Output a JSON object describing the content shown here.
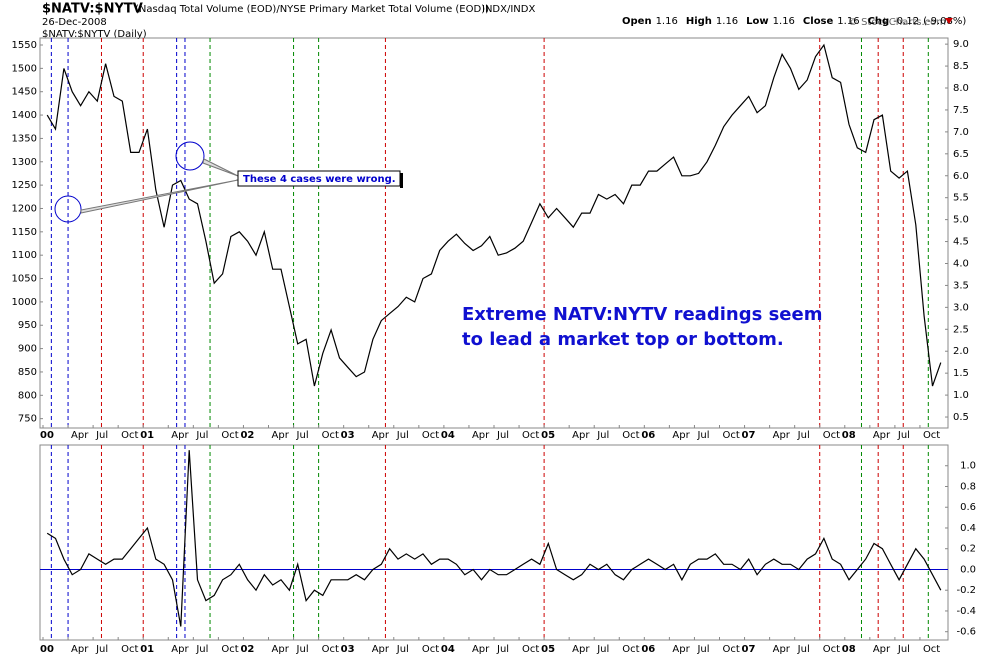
{
  "header": {
    "symbol": "$NATV:$NYTV",
    "description": "(Nasdaq Total Volume (EOD)/NYSE Primary Market Total Volume (EOD))",
    "exchange": "INDX/INDX",
    "date": "26-Dec-2008",
    "panel_label": "$NATV:$NYTV (Daily)",
    "credit": "© StockCharts.com",
    "quote": [
      {
        "label": "Open",
        "value": 1.16
      },
      {
        "label": "High",
        "value": 1.16
      },
      {
        "label": "Low",
        "value": 1.16
      },
      {
        "label": "Close",
        "value": 1.16
      },
      {
        "label": "Chg",
        "value": -0.12
      }
    ],
    "chg_pct": "(-9.08%)"
  },
  "annotations": {
    "box": "These 4 cases were wrong.",
    "note": [
      "Extreme NATV:NYTV readings seem",
      "to lead a market top or bottom."
    ]
  },
  "chart_data": [
    {
      "type": "line",
      "color": "#000000",
      "x": [
        "2000-01",
        "2000-02",
        "2000-03",
        "2000-04",
        "2000-05",
        "2000-06",
        "2000-07",
        "2000-08",
        "2000-09",
        "2000-10",
        "2000-11",
        "2000-12",
        "2001-01",
        "2001-02",
        "2001-03",
        "2001-04",
        "2001-05",
        "2001-06",
        "2001-07",
        "2001-08",
        "2001-09",
        "2001-10",
        "2001-11",
        "2001-12",
        "2002-01",
        "2002-02",
        "2002-03",
        "2002-04",
        "2002-05",
        "2002-06",
        "2002-07",
        "2002-08",
        "2002-09",
        "2002-10",
        "2002-11",
        "2002-12",
        "2003-01",
        "2003-02",
        "2003-03",
        "2003-04",
        "2003-05",
        "2003-06",
        "2003-07",
        "2003-08",
        "2003-09",
        "2003-10",
        "2003-11",
        "2003-12",
        "2004-01",
        "2004-02",
        "2004-03",
        "2004-04",
        "2004-05",
        "2004-06",
        "2004-07",
        "2004-08",
        "2004-09",
        "2004-10",
        "2004-11",
        "2004-12",
        "2005-01",
        "2005-02",
        "2005-03",
        "2005-04",
        "2005-05",
        "2005-06",
        "2005-07",
        "2005-08",
        "2005-09",
        "2005-10",
        "2005-11",
        "2005-12",
        "2006-01",
        "2006-02",
        "2006-03",
        "2006-04",
        "2006-05",
        "2006-06",
        "2006-07",
        "2006-08",
        "2006-09",
        "2006-10",
        "2006-11",
        "2006-12",
        "2007-01",
        "2007-02",
        "2007-03",
        "2007-04",
        "2007-05",
        "2007-06",
        "2007-07",
        "2007-08",
        "2007-09",
        "2007-10",
        "2007-11",
        "2007-12",
        "2008-01",
        "2008-02",
        "2008-03",
        "2008-04",
        "2008-05",
        "2008-06",
        "2008-07",
        "2008-08",
        "2008-09",
        "2008-10",
        "2008-11",
        "2008-12"
      ],
      "values": [
        1400,
        1370,
        1500,
        1450,
        1420,
        1450,
        1430,
        1510,
        1440,
        1430,
        1320,
        1320,
        1370,
        1240,
        1160,
        1250,
        1260,
        1220,
        1210,
        1130,
        1040,
        1060,
        1140,
        1150,
        1130,
        1100,
        1150,
        1070,
        1070,
        990,
        910,
        920,
        820,
        890,
        940,
        880,
        860,
        840,
        850,
        920,
        960,
        975,
        990,
        1010,
        1000,
        1050,
        1060,
        1110,
        1130,
        1145,
        1125,
        1110,
        1120,
        1140,
        1100,
        1105,
        1115,
        1130,
        1170,
        1210,
        1180,
        1200,
        1180,
        1160,
        1190,
        1190,
        1230,
        1220,
        1230,
        1210,
        1250,
        1250,
        1280,
        1280,
        1295,
        1310,
        1270,
        1270,
        1275,
        1300,
        1335,
        1375,
        1400,
        1420,
        1440,
        1405,
        1420,
        1480,
        1530,
        1500,
        1455,
        1475,
        1525,
        1550,
        1480,
        1470,
        1380,
        1330,
        1320,
        1390,
        1400,
        1280,
        1265,
        1280,
        1165,
        970,
        820,
        870
      ],
      "ylim": [
        730,
        1565
      ],
      "yticks": [
        750,
        800,
        850,
        900,
        950,
        1000,
        1050,
        1100,
        1150,
        1200,
        1250,
        1300,
        1350,
        1400,
        1450,
        1500,
        1550
      ],
      "y2lim": [
        0.25,
        9.14
      ],
      "y2ticks": [
        0.5,
        {
          "value": 1,
          "label": "1.0"
        },
        1.5,
        {
          "value": 2,
          "label": "2.0"
        },
        2.5,
        {
          "value": 3,
          "label": "3.0"
        },
        3.5,
        {
          "value": 4,
          "label": "4.0"
        },
        4.5,
        {
          "value": 5,
          "label": "5.0"
        },
        5.5,
        {
          "value": 6,
          "label": "6.0"
        },
        6.5,
        {
          "value": 7,
          "label": "7.0"
        },
        7.5,
        {
          "value": 8,
          "label": "8.0"
        },
        8.5,
        {
          "value": 9,
          "label": "9.0"
        }
      ],
      "xlim": [
        "2000-01",
        "2008-12"
      ],
      "xticks": [
        {
          "value": "2000-01",
          "label": "00"
        },
        {
          "value": "2000-04",
          "label": "Apr"
        },
        {
          "value": "2000-07",
          "label": "Jul"
        },
        {
          "value": "2000-10",
          "label": "Oct"
        },
        {
          "value": "2001-01",
          "label": "01"
        },
        {
          "value": "2001-04",
          "label": "Apr"
        },
        {
          "value": "2001-07",
          "label": "Jul"
        },
        {
          "value": "2001-10",
          "label": "Oct"
        },
        {
          "value": "2002-01",
          "label": "02"
        },
        {
          "value": "2002-04",
          "label": "Apr"
        },
        {
          "value": "2002-07",
          "label": "Jul"
        },
        {
          "value": "2002-10",
          "label": "Oct"
        },
        {
          "value": "2003-01",
          "label": "03"
        },
        {
          "value": "2003-04",
          "label": "Apr"
        },
        {
          "value": "2003-07",
          "label": "Jul"
        },
        {
          "value": "2003-10",
          "label": "Oct"
        },
        {
          "value": "2004-01",
          "label": "04"
        },
        {
          "value": "2004-04",
          "label": "Apr"
        },
        {
          "value": "2004-07",
          "label": "Jul"
        },
        {
          "value": "2004-10",
          "label": "Oct"
        },
        {
          "value": "2005-01",
          "label": "05"
        },
        {
          "value": "2005-04",
          "label": "Apr"
        },
        {
          "value": "2005-07",
          "label": "Jul"
        },
        {
          "value": "2005-10",
          "label": "Oct"
        },
        {
          "value": "2006-01",
          "label": "06"
        },
        {
          "value": "2006-04",
          "label": "Apr"
        },
        {
          "value": "2006-07",
          "label": "Jul"
        },
        {
          "value": "2006-10",
          "label": "Oct"
        },
        {
          "value": "2007-01",
          "label": "07"
        },
        {
          "value": "2007-04",
          "label": "Apr"
        },
        {
          "value": "2007-07",
          "label": "Jul"
        },
        {
          "value": "2007-10",
          "label": "Oct"
        },
        {
          "value": "2008-01",
          "label": "08"
        },
        {
          "value": "2008-04",
          "label": "Apr"
        },
        {
          "value": "2008-07",
          "label": "Jul"
        },
        {
          "value": "2008-10",
          "label": "Oct"
        }
      ],
      "markers": [
        {
          "x": "2000-02",
          "color": "#0000cc"
        },
        {
          "x": "2000-04",
          "color": "#0000cc"
        },
        {
          "x": "2000-08",
          "color": "#cc0000"
        },
        {
          "x": "2001-01",
          "color": "#cc0000"
        },
        {
          "x": "2001-05",
          "color": "#0000cc"
        },
        {
          "x": "2001-06",
          "color": "#0000cc"
        },
        {
          "x": "2001-09",
          "color": "#008800"
        },
        {
          "x": "2002-07",
          "color": "#008800"
        },
        {
          "x": "2002-10",
          "color": "#008800"
        },
        {
          "x": "2003-06",
          "color": "#cc0000"
        },
        {
          "x": "2005-01",
          "color": "#cc0000"
        },
        {
          "x": "2007-10",
          "color": "#cc0000"
        },
        {
          "x": "2008-03",
          "color": "#008800"
        },
        {
          "x": "2008-05",
          "color": "#cc0000"
        },
        {
          "x": "2008-08",
          "color": "#cc0000"
        },
        {
          "x": "2008-11",
          "color": "#008800"
        }
      ],
      "grid": false
    },
    {
      "type": "line",
      "color": "#000000",
      "x": [
        "2000-01",
        "2000-02",
        "2000-03",
        "2000-04",
        "2000-05",
        "2000-06",
        "2000-07",
        "2000-08",
        "2000-09",
        "2000-10",
        "2000-11",
        "2000-12",
        "2001-01",
        "2001-02",
        "2001-03",
        "2001-04",
        "2001-05",
        "2001-06",
        "2001-07",
        "2001-08",
        "2001-09",
        "2001-10",
        "2001-11",
        "2001-12",
        "2002-01",
        "2002-02",
        "2002-03",
        "2002-04",
        "2002-05",
        "2002-06",
        "2002-07",
        "2002-08",
        "2002-09",
        "2002-10",
        "2002-11",
        "2002-12",
        "2003-01",
        "2003-02",
        "2003-03",
        "2003-04",
        "2003-05",
        "2003-06",
        "2003-07",
        "2003-08",
        "2003-09",
        "2003-10",
        "2003-11",
        "2003-12",
        "2004-01",
        "2004-02",
        "2004-03",
        "2004-04",
        "2004-05",
        "2004-06",
        "2004-07",
        "2004-08",
        "2004-09",
        "2004-10",
        "2004-11",
        "2004-12",
        "2005-01",
        "2005-02",
        "2005-03",
        "2005-04",
        "2005-05",
        "2005-06",
        "2005-07",
        "2005-08",
        "2005-09",
        "2005-10",
        "2005-11",
        "2005-12",
        "2006-01",
        "2006-02",
        "2006-03",
        "2006-04",
        "2006-05",
        "2006-06",
        "2006-07",
        "2006-08",
        "2006-09",
        "2006-10",
        "2006-11",
        "2006-12",
        "2007-01",
        "2007-02",
        "2007-03",
        "2007-04",
        "2007-05",
        "2007-06",
        "2007-07",
        "2007-08",
        "2007-09",
        "2007-10",
        "2007-11",
        "2007-12",
        "2008-01",
        "2008-02",
        "2008-03",
        "2008-04",
        "2008-05",
        "2008-06",
        "2008-07",
        "2008-08",
        "2008-09",
        "2008-10",
        "2008-11",
        "2008-12"
      ],
      "values": [
        0.35,
        0.3,
        0.1,
        -0.05,
        0.0,
        0.15,
        0.1,
        0.05,
        0.1,
        0.1,
        0.2,
        0.3,
        0.4,
        0.1,
        0.05,
        -0.1,
        -0.55,
        1.15,
        -0.1,
        -0.3,
        -0.25,
        -0.1,
        -0.05,
        0.05,
        -0.1,
        -0.2,
        -0.05,
        -0.15,
        -0.1,
        -0.2,
        0.05,
        -0.3,
        -0.2,
        -0.25,
        -0.1,
        -0.1,
        -0.1,
        -0.05,
        -0.1,
        0.0,
        0.05,
        0.2,
        0.1,
        0.15,
        0.1,
        0.15,
        0.05,
        0.1,
        0.1,
        0.05,
        -0.05,
        0.0,
        -0.1,
        0.0,
        -0.05,
        -0.05,
        0.0,
        0.05,
        0.1,
        0.05,
        0.25,
        0.0,
        -0.05,
        -0.1,
        -0.05,
        0.05,
        0.0,
        0.05,
        -0.05,
        -0.1,
        0.0,
        0.05,
        0.1,
        0.05,
        0.0,
        0.05,
        -0.1,
        0.05,
        0.1,
        0.1,
        0.15,
        0.05,
        0.05,
        0.0,
        0.1,
        -0.05,
        0.05,
        0.1,
        0.05,
        0.05,
        0.0,
        0.1,
        0.15,
        0.3,
        0.1,
        0.05,
        -0.1,
        0.0,
        0.1,
        0.25,
        0.2,
        0.05,
        -0.1,
        0.05,
        0.2,
        0.1,
        -0.05,
        -0.2
      ],
      "ylim": [
        -0.68,
        1.2
      ],
      "yticks": [
        -0.6,
        -0.4,
        -0.2,
        {
          "value": 0,
          "label": "0.0"
        },
        0.2,
        0.4,
        0.6,
        0.8,
        {
          "value": 1,
          "label": "1.0"
        }
      ],
      "reference_line": {
        "value": 0,
        "color": "#0000cc"
      },
      "grid": false
    }
  ]
}
